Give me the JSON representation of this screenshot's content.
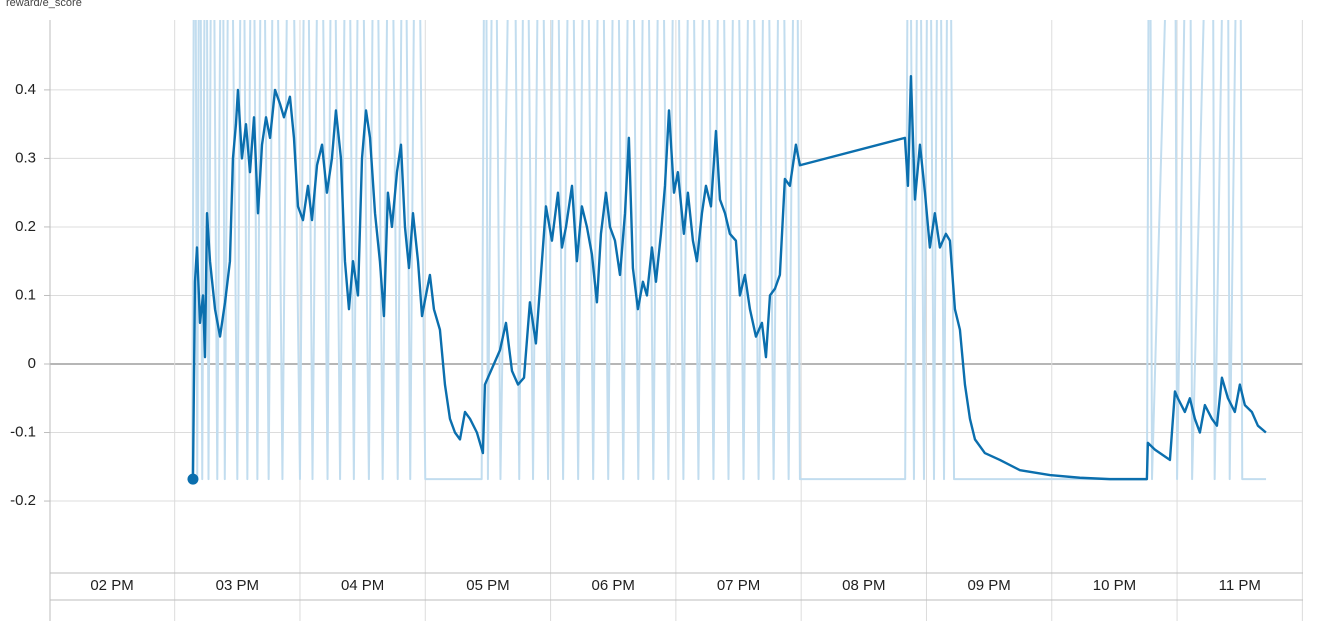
{
  "chart_data": {
    "type": "line",
    "title": "reward/e_score",
    "grid": true,
    "xlim": [
      13.505,
      23.505
    ],
    "ylim": [
      -0.305,
      0.502
    ],
    "xticks": [
      {
        "value": 14,
        "label": "02 PM"
      },
      {
        "value": 15,
        "label": "03 PM"
      },
      {
        "value": 16,
        "label": "04 PM"
      },
      {
        "value": 17,
        "label": "05 PM"
      },
      {
        "value": 18,
        "label": "06 PM"
      },
      {
        "value": 19,
        "label": "07 PM"
      },
      {
        "value": 20,
        "label": "08 PM"
      },
      {
        "value": 21,
        "label": "09 PM"
      },
      {
        "value": 22,
        "label": "10 PM"
      },
      {
        "value": 23,
        "label": "11 PM"
      }
    ],
    "yticks": [
      -0.2,
      -0.1,
      0,
      0.1,
      0.2,
      0.3,
      0.4
    ],
    "series": [
      {
        "color": "#c2ddef",
        "x": [
          14.64,
          14.66,
          14.68,
          14.7,
          14.72,
          14.75,
          14.77,
          14.8,
          14.84,
          14.88,
          14.9,
          14.94,
          15.0,
          15.04,
          15.08,
          15.12,
          15.16,
          15.2,
          15.25,
          15.3,
          15.36,
          15.42,
          15.5,
          15.55,
          15.6,
          15.66,
          15.72,
          15.76,
          15.82,
          15.88,
          15.93,
          15.98,
          16.05,
          16.1,
          16.16,
          16.22,
          16.28,
          16.33,
          16.38,
          16.43,
          16.5,
          16.95,
          16.98,
          17.0,
          17.05,
          17.1,
          17.2,
          17.25,
          17.3,
          17.36,
          17.42,
          17.48,
          17.54,
          17.6,
          17.66,
          17.72,
          17.78,
          17.84,
          17.9,
          17.96,
          18.02,
          18.08,
          18.14,
          18.2,
          18.26,
          18.32,
          18.38,
          18.44,
          18.5,
          18.56,
          18.62,
          18.68,
          18.74,
          18.8,
          18.86,
          18.92,
          18.98,
          19.04,
          19.1,
          19.16,
          19.22,
          19.28,
          19.34,
          19.4,
          19.46,
          19.49,
          20.33,
          20.36,
          20.4,
          20.44,
          20.48,
          20.52,
          20.56,
          20.6,
          20.64,
          20.68,
          20.72,
          22.26,
          22.28,
          22.3,
          22.48,
          22.5,
          22.6,
          22.62,
          22.78,
          22.8,
          22.9,
          22.92,
          23.0,
          23.02,
          23.21
        ],
        "values": [
          -0.168,
          1,
          -0.168,
          1,
          -0.168,
          1,
          -0.168,
          1,
          -0.168,
          1,
          -0.168,
          1,
          -0.168,
          1,
          -0.168,
          1,
          -0.168,
          1,
          -0.168,
          1,
          -0.168,
          1,
          -0.168,
          1,
          -0.168,
          1,
          -0.168,
          1,
          -0.168,
          1,
          -0.168,
          1,
          -0.168,
          1,
          -0.168,
          1,
          -0.168,
          1,
          -0.168,
          1,
          -0.168,
          -0.168,
          1,
          -0.168,
          1,
          -0.168,
          1,
          -0.168,
          1,
          -0.168,
          1,
          -0.168,
          1,
          -0.168,
          1,
          -0.168,
          1,
          -0.168,
          1,
          -0.168,
          1,
          -0.168,
          1,
          -0.168,
          1,
          -0.168,
          1,
          -0.168,
          1,
          -0.168,
          1,
          -0.168,
          1,
          -0.168,
          1,
          -0.168,
          1,
          -0.168,
          1,
          -0.168,
          1,
          -0.168,
          1,
          -0.168,
          1,
          -0.168,
          -0.168,
          1,
          -0.168,
          1,
          -0.168,
          1,
          -0.168,
          1,
          -0.168,
          1,
          -0.168,
          -0.168,
          1,
          -0.168,
          1,
          -0.168,
          1,
          -0.168,
          1,
          -0.168,
          1,
          -0.168,
          1,
          -0.168,
          -0.168
        ]
      },
      {
        "color": "#0b6fae",
        "x": [
          14.646,
          14.662,
          14.678,
          14.702,
          14.726,
          14.742,
          14.758,
          14.782,
          14.822,
          14.862,
          14.902,
          14.941,
          14.965,
          14.989,
          15.005,
          15.037,
          15.069,
          15.101,
          15.133,
          15.165,
          15.197,
          15.229,
          15.261,
          15.301,
          15.34,
          15.372,
          15.42,
          15.452,
          15.484,
          15.524,
          15.564,
          15.596,
          15.636,
          15.676,
          15.715,
          15.755,
          15.787,
          15.827,
          15.859,
          15.891,
          15.923,
          15.963,
          15.995,
          16.027,
          16.059,
          16.099,
          16.138,
          16.17,
          16.202,
          16.234,
          16.274,
          16.306,
          16.338,
          16.37,
          16.402,
          16.442,
          16.474,
          16.505,
          16.537,
          16.569,
          16.617,
          16.657,
          16.697,
          16.737,
          16.777,
          16.817,
          16.857,
          16.912,
          16.96,
          16.976,
          17.096,
          17.144,
          17.192,
          17.24,
          17.288,
          17.335,
          17.383,
          17.431,
          17.463,
          17.511,
          17.559,
          17.591,
          17.623,
          17.671,
          17.71,
          17.75,
          17.79,
          17.83,
          17.87,
          17.902,
          17.942,
          17.974,
          18.014,
          18.054,
          18.094,
          18.125,
          18.157,
          18.197,
          18.237,
          18.269,
          18.309,
          18.341,
          18.381,
          18.413,
          18.445,
          18.485,
          18.516,
          18.564,
          18.596,
          18.636,
          18.668,
          18.708,
          18.74,
          18.78,
          18.82,
          18.852,
          18.892,
          18.931,
          18.979,
          19.011,
          19.051,
          19.091,
          19.139,
          19.187,
          19.219,
          19.251,
          19.291,
          19.33,
          19.37,
          19.41,
          19.458,
          19.49,
          20.328,
          20.352,
          20.376,
          20.408,
          20.448,
          20.488,
          20.527,
          20.567,
          20.607,
          20.655,
          20.687,
          20.727,
          20.767,
          20.807,
          20.847,
          20.887,
          20.966,
          21.086,
          21.246,
          21.485,
          21.724,
          21.964,
          22.259,
          22.267,
          22.323,
          22.403,
          22.443,
          22.483,
          22.506,
          22.562,
          22.602,
          22.642,
          22.682,
          22.722,
          22.778,
          22.818,
          22.858,
          22.906,
          22.961,
          23.001,
          23.041,
          23.097,
          23.145,
          23.209
        ],
        "values": [
          -0.168,
          0.12,
          0.17,
          0.06,
          0.1,
          0.01,
          0.22,
          0.15,
          0.08,
          0.04,
          0.09,
          0.15,
          0.3,
          0.35,
          0.4,
          0.3,
          0.35,
          0.28,
          0.36,
          0.22,
          0.32,
          0.36,
          0.33,
          0.4,
          0.38,
          0.36,
          0.39,
          0.33,
          0.23,
          0.21,
          0.26,
          0.21,
          0.29,
          0.32,
          0.25,
          0.3,
          0.37,
          0.3,
          0.15,
          0.08,
          0.15,
          0.1,
          0.3,
          0.37,
          0.33,
          0.22,
          0.15,
          0.07,
          0.25,
          0.2,
          0.28,
          0.32,
          0.2,
          0.14,
          0.22,
          0.15,
          0.07,
          0.1,
          0.13,
          0.08,
          0.05,
          -0.03,
          -0.08,
          -0.1,
          -0.11,
          -0.07,
          -0.08,
          -0.1,
          -0.13,
          -0.03,
          0.02,
          0.06,
          -0.01,
          -0.03,
          -0.02,
          0.09,
          0.03,
          0.15,
          0.23,
          0.18,
          0.25,
          0.17,
          0.2,
          0.26,
          0.15,
          0.23,
          0.2,
          0.16,
          0.09,
          0.19,
          0.25,
          0.2,
          0.18,
          0.13,
          0.22,
          0.33,
          0.14,
          0.08,
          0.12,
          0.1,
          0.17,
          0.12,
          0.19,
          0.26,
          0.37,
          0.25,
          0.28,
          0.19,
          0.25,
          0.18,
          0.15,
          0.22,
          0.26,
          0.23,
          0.34,
          0.24,
          0.22,
          0.19,
          0.18,
          0.1,
          0.13,
          0.08,
          0.04,
          0.06,
          0.01,
          0.1,
          0.11,
          0.13,
          0.27,
          0.26,
          0.32,
          0.29,
          0.33,
          0.26,
          0.42,
          0.24,
          0.32,
          0.25,
          0.17,
          0.22,
          0.17,
          0.19,
          0.18,
          0.08,
          0.05,
          -0.03,
          -0.08,
          -0.11,
          -0.13,
          -0.14,
          -0.155,
          -0.162,
          -0.166,
          -0.168,
          -0.168,
          -0.115,
          -0.125,
          -0.135,
          -0.14,
          -0.04,
          -0.05,
          -0.07,
          -0.05,
          -0.08,
          -0.1,
          -0.06,
          -0.08,
          -0.09,
          -0.02,
          -0.05,
          -0.07,
          -0.03,
          -0.06,
          -0.07,
          -0.09,
          -0.1
        ]
      }
    ]
  }
}
